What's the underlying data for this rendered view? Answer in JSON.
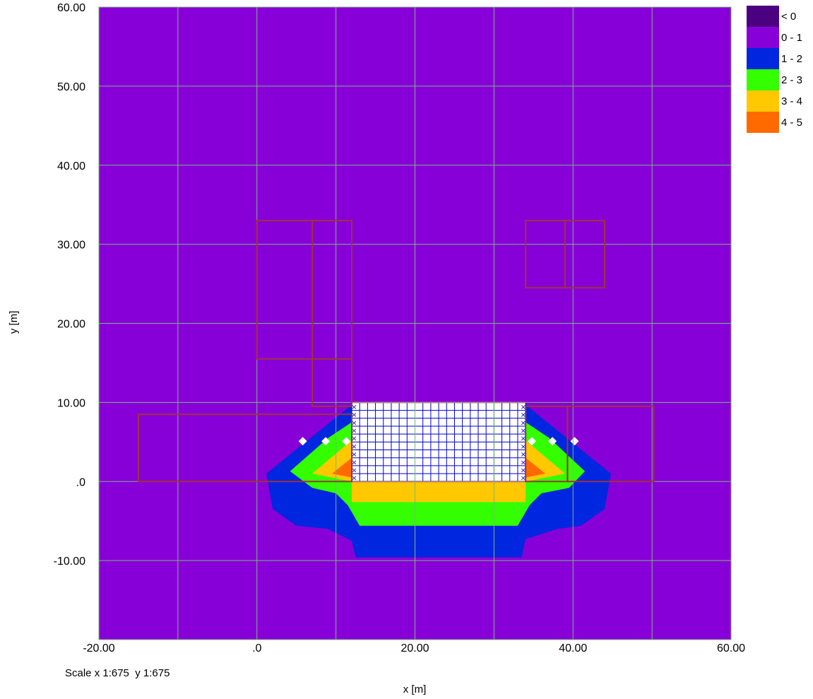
{
  "chart_data": {
    "type": "heatmap",
    "x_range": [
      -20,
      60
    ],
    "y_range": [
      -20,
      60
    ],
    "x_ticks": [
      -20,
      -10,
      0,
      10,
      20,
      30,
      40,
      50,
      60
    ],
    "y_ticks": [
      -10,
      0,
      10,
      20,
      30,
      40,
      50,
      60
    ],
    "x_tick_labels": [
      "-20.00",
      ".0",
      "20.00",
      "40.00",
      "60.00"
    ],
    "x_tick_label_values": [
      -20,
      0,
      20,
      40,
      60
    ],
    "y_tick_labels": [
      "-10.00",
      ".0",
      "10.00",
      "20.00",
      "30.00",
      "40.00",
      "50.00",
      "60.00"
    ],
    "y_tick_label_values": [
      -10,
      0,
      10,
      20,
      30,
      40,
      50,
      60
    ],
    "xlabel": "x [m]",
    "ylabel": "y [m]",
    "grid": true,
    "legend_position": "top-right",
    "legend": [
      {
        "label": "< 0",
        "color": "#4b0082"
      },
      {
        "label": "0 - 1",
        "color": "#8800d8"
      },
      {
        "label": "1 - 2",
        "color": "#0026e0"
      },
      {
        "label": "2 - 3",
        "color": "#33ff00"
      },
      {
        "label": "3 - 4",
        "color": "#ffc800"
      },
      {
        "label": "4 - 5",
        "color": "#ff6a00"
      }
    ],
    "background_band": "0 - 1",
    "contour_zones": [
      {
        "band": "1 - 2",
        "color": "#0026e0",
        "polygon": [
          [
            1.2,
            1
          ],
          [
            12,
            9.7
          ],
          [
            34,
            9.7
          ],
          [
            44.8,
            1
          ],
          [
            44,
            -3.5
          ],
          [
            41,
            -5.6
          ],
          [
            38,
            -6
          ],
          [
            34,
            -7.3
          ],
          [
            33.5,
            -9.6
          ],
          [
            12.5,
            -9.6
          ],
          [
            12,
            -7.5
          ],
          [
            9,
            -6
          ],
          [
            5,
            -5.6
          ],
          [
            2,
            -3.5
          ]
        ]
      },
      {
        "band": "2 - 3",
        "color": "#33ff00",
        "polygon": [
          [
            4.2,
            1.3
          ],
          [
            9,
            5.5
          ],
          [
            12,
            7.5
          ],
          [
            34,
            7.5
          ],
          [
            37,
            5.5
          ],
          [
            41.5,
            1.3
          ],
          [
            39.5,
            -0.8
          ],
          [
            36,
            -1.5
          ],
          [
            34.5,
            -3
          ],
          [
            33,
            -5.6
          ],
          [
            13,
            -5.6
          ],
          [
            11.5,
            -3
          ],
          [
            10,
            -1.5
          ],
          [
            7,
            -0.8
          ]
        ]
      },
      {
        "band": "3 - 4",
        "color": "#ffc800",
        "polygon": [
          [
            7,
            1
          ],
          [
            12,
            5.2
          ],
          [
            34,
            5.2
          ],
          [
            39,
            1
          ],
          [
            34,
            0
          ],
          [
            34,
            -2.6
          ],
          [
            12,
            -2.6
          ],
          [
            12,
            0
          ]
        ]
      },
      {
        "band": "4 - 5",
        "color": "#ff6a00",
        "polygon": [
          [
            9.5,
            1
          ],
          [
            12,
            3
          ],
          [
            12,
            0.5
          ]
        ]
      },
      {
        "band": "4 - 5",
        "color": "#ff6a00",
        "polygon": [
          [
            34,
            0.5
          ],
          [
            34,
            3
          ],
          [
            36.5,
            1
          ]
        ]
      }
    ],
    "white_markers": [
      [
        5.8,
        5.1
      ],
      [
        8.7,
        5.1
      ],
      [
        11.3,
        5.1
      ],
      [
        34.8,
        5.1
      ],
      [
        37.4,
        5.1
      ],
      [
        40.2,
        5.1
      ]
    ],
    "foundation": {
      "x": [
        12,
        34
      ],
      "y": [
        0,
        10
      ],
      "grid_step": 1,
      "fill": "#ffffff",
      "line_color": "#0000cc",
      "edge_color": "#cc3399"
    },
    "buildings": [
      {
        "x": [
          0,
          7
        ],
        "y": [
          15.5,
          33
        ]
      },
      {
        "x": [
          7,
          12
        ],
        "y": [
          15.5,
          33
        ]
      },
      {
        "x": [
          7,
          12
        ],
        "y": [
          9.5,
          15.5
        ]
      },
      {
        "x": [
          34,
          39
        ],
        "y": [
          24.5,
          33
        ]
      },
      {
        "x": [
          39,
          44
        ],
        "y": [
          24.5,
          33
        ]
      },
      {
        "x": [
          -15,
          12
        ],
        "y": [
          0,
          8.5
        ]
      },
      {
        "x": [
          34,
          39.3
        ],
        "y": [
          0,
          9.5
        ]
      },
      {
        "x": [
          39.3,
          50.2
        ],
        "y": [
          0,
          9.5
        ]
      }
    ],
    "building_color": "#a0323c",
    "grid_color": "#7ab87a"
  },
  "scale_text": "Scale x 1:675  y 1:675"
}
